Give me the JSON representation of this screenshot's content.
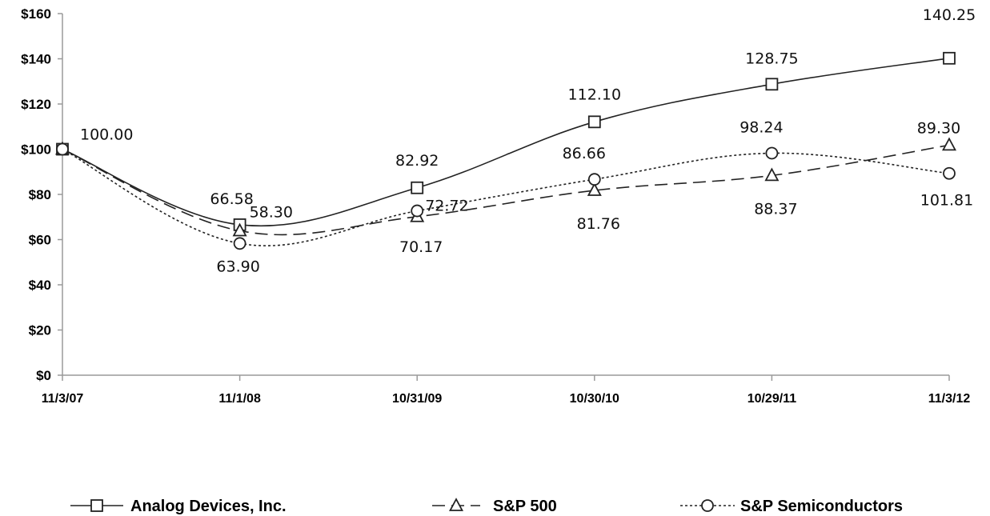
{
  "chart_data": {
    "type": "line",
    "title": "",
    "xlabel": "",
    "ylabel": "",
    "categories": [
      "11/3/07",
      "11/1/08",
      "10/31/09",
      "10/30/10",
      "10/29/11",
      "11/3/12"
    ],
    "ylim": [
      0,
      160
    ],
    "yticks": [
      0,
      20,
      40,
      60,
      80,
      100,
      120,
      140,
      160
    ],
    "ytick_labels": [
      "$0",
      "$20",
      "$40",
      "$60",
      "$80",
      "$100",
      "$120",
      "$140",
      "$160"
    ],
    "grid": false,
    "legend_position": "bottom",
    "series": [
      {
        "name": "Analog Devices, Inc.",
        "values": [
          100.0,
          66.58,
          82.92,
          112.1,
          128.75,
          140.25
        ],
        "labels": [
          "100.00",
          "66.58",
          "82.92",
          "112.10",
          "128.75",
          "140.25"
        ],
        "marker": "square",
        "line_style": "solid",
        "color": "#222222"
      },
      {
        "name": "S&P 500",
        "values": [
          100.0,
          63.9,
          70.17,
          81.76,
          88.37,
          101.81
        ],
        "labels": [
          "",
          "63.90",
          "70.17",
          "81.76",
          "88.37",
          "101.81"
        ],
        "marker": "triangle",
        "line_style": "dashed",
        "color": "#222222"
      },
      {
        "name": "S&P Semiconductors",
        "values": [
          100.0,
          58.3,
          72.72,
          86.66,
          98.24,
          89.3
        ],
        "labels": [
          "",
          "58.30",
          "72.72",
          "86.66",
          "98.24",
          "89.30"
        ],
        "marker": "circle",
        "line_style": "dotted",
        "color": "#222222"
      }
    ]
  }
}
